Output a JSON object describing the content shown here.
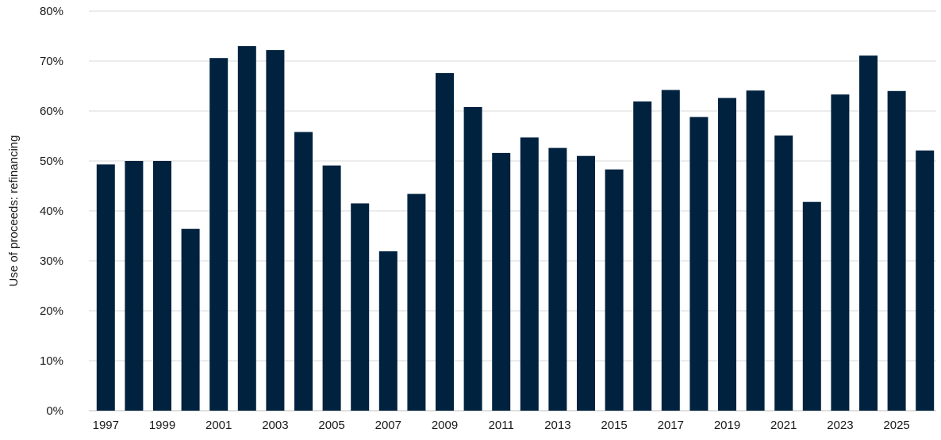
{
  "chart_data": {
    "type": "bar",
    "title": "",
    "xlabel": "",
    "ylabel": "Use of proceeds: refinancing",
    "categories": [
      "1997",
      "1998",
      "1999",
      "2000",
      "2001",
      "2002",
      "2003",
      "2004",
      "2005",
      "2006",
      "2007",
      "2008",
      "2009",
      "2010",
      "2011",
      "2012",
      "2013",
      "2014",
      "2015",
      "2016",
      "2017",
      "2018",
      "2019",
      "2020",
      "2021",
      "2022",
      "2023",
      "2024",
      "2025",
      "2026"
    ],
    "x_tick_labels": [
      "1997",
      "",
      "1999",
      "",
      "2001",
      "",
      "2003",
      "",
      "2005",
      "",
      "2007",
      "",
      "2009",
      "",
      "2011",
      "",
      "2013",
      "",
      "2015",
      "",
      "2017",
      "",
      "2019",
      "",
      "2021",
      "",
      "2023",
      "",
      "2025",
      ""
    ],
    "values": [
      49.3,
      50.0,
      50.0,
      36.4,
      70.6,
      73.0,
      72.2,
      55.8,
      49.1,
      41.5,
      31.9,
      43.4,
      67.6,
      60.8,
      51.6,
      54.7,
      52.6,
      51.0,
      48.3,
      61.9,
      64.2,
      58.8,
      62.6,
      64.1,
      55.1,
      41.8,
      63.3,
      71.1,
      64.0,
      52.1
    ],
    "y_ticks": [
      "0%",
      "10%",
      "20%",
      "30%",
      "40%",
      "50%",
      "60%",
      "70%",
      "80%"
    ],
    "ylim": [
      0,
      80
    ],
    "ytick_step": 10,
    "grid": true,
    "legend": "none",
    "bar_color": "#00223f"
  }
}
